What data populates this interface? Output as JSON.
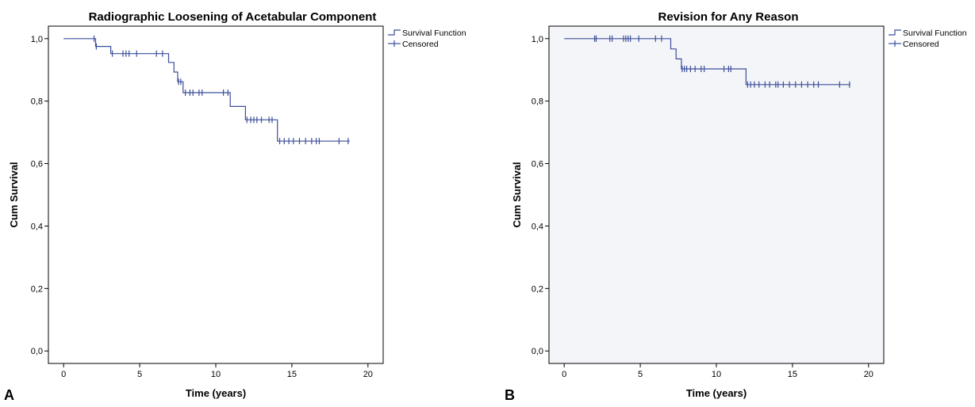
{
  "chart_data": [
    {
      "type": "line",
      "panel_label": "A",
      "title": "Radiographic Loosening of Acetabular Component",
      "xlabel": "Time (years)",
      "ylabel": "Cum Survival",
      "xlim": [
        -1,
        21
      ],
      "ylim": [
        -0.04,
        1.04
      ],
      "x_ticks": [
        0,
        5,
        10,
        15,
        20
      ],
      "x_tick_labels": [
        "0",
        "5",
        "10",
        "15",
        "20"
      ],
      "y_ticks": [
        0,
        0.2,
        0.4,
        0.6,
        0.8,
        1.0
      ],
      "y_tick_labels": [
        "0,0",
        "0,2",
        "0,4",
        "0,6",
        "0,8",
        "1,0"
      ],
      "plot_background": "#ffffff",
      "grid": false,
      "legend_position": "top-right",
      "legend": [
        "Survival Function",
        "Censored"
      ],
      "series": [
        {
          "name": "Survival Function",
          "steps": [
            [
              0,
              1.0
            ],
            [
              2.1,
              0.975
            ],
            [
              3.1,
              0.952
            ],
            [
              6.9,
              0.924
            ],
            [
              7.25,
              0.893
            ],
            [
              7.5,
              0.862
            ],
            [
              7.85,
              0.827
            ],
            [
              10.95,
              0.783
            ],
            [
              11.95,
              0.74
            ],
            [
              14.05,
              0.672
            ],
            [
              18.8,
              0.672
            ]
          ],
          "censored": [
            [
              2.0,
              1.0
            ],
            [
              2.15,
              0.975
            ],
            [
              3.2,
              0.952
            ],
            [
              3.9,
              0.952
            ],
            [
              4.1,
              0.952
            ],
            [
              4.3,
              0.952
            ],
            [
              4.8,
              0.952
            ],
            [
              6.1,
              0.952
            ],
            [
              6.5,
              0.952
            ],
            [
              7.55,
              0.862
            ],
            [
              7.7,
              0.862
            ],
            [
              8.0,
              0.827
            ],
            [
              8.3,
              0.827
            ],
            [
              8.5,
              0.827
            ],
            [
              8.9,
              0.827
            ],
            [
              9.1,
              0.827
            ],
            [
              10.5,
              0.827
            ],
            [
              10.8,
              0.827
            ],
            [
              12.05,
              0.74
            ],
            [
              12.3,
              0.74
            ],
            [
              12.5,
              0.74
            ],
            [
              12.7,
              0.74
            ],
            [
              13.0,
              0.74
            ],
            [
              13.5,
              0.74
            ],
            [
              13.7,
              0.74
            ],
            [
              14.2,
              0.672
            ],
            [
              14.5,
              0.672
            ],
            [
              14.8,
              0.672
            ],
            [
              15.1,
              0.672
            ],
            [
              15.5,
              0.672
            ],
            [
              15.9,
              0.672
            ],
            [
              16.3,
              0.672
            ],
            [
              16.6,
              0.672
            ],
            [
              16.8,
              0.672
            ],
            [
              18.1,
              0.672
            ],
            [
              18.7,
              0.672
            ]
          ]
        }
      ]
    },
    {
      "type": "line",
      "panel_label": "B",
      "title": "Revision for Any Reason",
      "xlabel": "Time (years)",
      "ylabel": "Cum Survival",
      "xlim": [
        -1,
        21
      ],
      "ylim": [
        -0.04,
        1.04
      ],
      "x_ticks": [
        0,
        5,
        10,
        15,
        20
      ],
      "x_tick_labels": [
        "0",
        "5",
        "10",
        "15",
        "20"
      ],
      "y_ticks": [
        0,
        0.2,
        0.4,
        0.6,
        0.8,
        1.0
      ],
      "y_tick_labels": [
        "0,0",
        "0,2",
        "0,4",
        "0,6",
        "0,8",
        "1,0"
      ],
      "plot_background": "#f4f5f8",
      "grid": false,
      "legend_position": "top-right",
      "legend": [
        "Survival Function",
        "Censored"
      ],
      "series": [
        {
          "name": "Survival Function",
          "steps": [
            [
              0,
              1.0
            ],
            [
              7.0,
              0.967
            ],
            [
              7.35,
              0.935
            ],
            [
              7.7,
              0.903
            ],
            [
              11.95,
              0.853
            ],
            [
              18.8,
              0.853
            ]
          ],
          "censored": [
            [
              2.0,
              1.0
            ],
            [
              2.1,
              1.0
            ],
            [
              3.0,
              1.0
            ],
            [
              3.15,
              1.0
            ],
            [
              3.9,
              1.0
            ],
            [
              4.05,
              1.0
            ],
            [
              4.2,
              1.0
            ],
            [
              4.35,
              1.0
            ],
            [
              4.9,
              1.0
            ],
            [
              6.0,
              1.0
            ],
            [
              6.4,
              1.0
            ],
            [
              7.75,
              0.903
            ],
            [
              7.9,
              0.903
            ],
            [
              8.05,
              0.903
            ],
            [
              8.3,
              0.903
            ],
            [
              8.6,
              0.903
            ],
            [
              9.0,
              0.903
            ],
            [
              9.2,
              0.903
            ],
            [
              10.5,
              0.903
            ],
            [
              10.8,
              0.903
            ],
            [
              10.95,
              0.903
            ],
            [
              12.05,
              0.853
            ],
            [
              12.25,
              0.853
            ],
            [
              12.5,
              0.853
            ],
            [
              12.8,
              0.853
            ],
            [
              13.2,
              0.853
            ],
            [
              13.5,
              0.853
            ],
            [
              13.9,
              0.853
            ],
            [
              14.05,
              0.853
            ],
            [
              14.4,
              0.853
            ],
            [
              14.8,
              0.853
            ],
            [
              15.2,
              0.853
            ],
            [
              15.6,
              0.853
            ],
            [
              16.0,
              0.853
            ],
            [
              16.4,
              0.853
            ],
            [
              16.7,
              0.853
            ],
            [
              18.1,
              0.853
            ],
            [
              18.75,
              0.853
            ]
          ]
        }
      ]
    }
  ],
  "colors": {
    "line": "#3c4f9b",
    "axis": "#000000",
    "text": "#000000"
  }
}
